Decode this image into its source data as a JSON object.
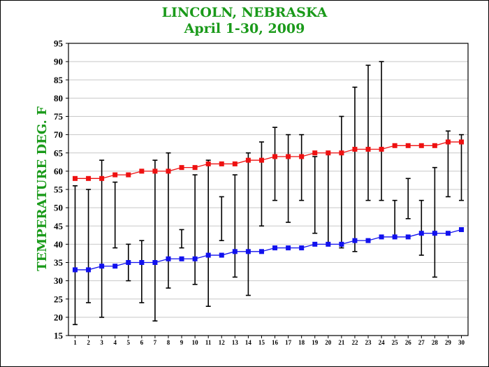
{
  "chart_data": {
    "type": "line",
    "title": "LINCOLN, NEBRASKA",
    "subtitle": "April 1-30,  2009",
    "xlabel": "",
    "ylabel": "TEMPERATURE DEG. F",
    "ylim": [
      15,
      95
    ],
    "yticks": [
      15,
      20,
      25,
      30,
      35,
      40,
      45,
      50,
      55,
      60,
      65,
      70,
      75,
      80,
      85,
      90,
      95
    ],
    "categories": [
      "1",
      "2",
      "3",
      "4",
      "5",
      "6",
      "7",
      "8",
      "9",
      "10",
      "11",
      "12",
      "13",
      "14",
      "15",
      "16",
      "17",
      "18",
      "19",
      "20",
      "21",
      "22",
      "23",
      "24",
      "25",
      "26",
      "27",
      "28",
      "29",
      "30"
    ],
    "grid": true,
    "series": [
      {
        "color": "#ee1111",
        "marker": "square",
        "values": [
          58,
          58,
          58,
          59,
          59,
          60,
          60,
          60,
          61,
          61,
          62,
          62,
          62,
          63,
          63,
          64,
          64,
          64,
          65,
          65,
          65,
          66,
          66,
          66,
          67,
          67,
          67,
          67,
          68,
          68
        ]
      },
      {
        "color": "#1111ee",
        "marker": "square",
        "values": [
          33,
          33,
          34,
          34,
          35,
          35,
          35,
          36,
          36,
          36,
          37,
          37,
          38,
          38,
          38,
          39,
          39,
          39,
          40,
          40,
          40,
          41,
          41,
          42,
          42,
          42,
          43,
          43,
          43,
          44
        ]
      }
    ],
    "error_bars": {
      "color": "#000000",
      "ranges": [
        [
          18,
          56
        ],
        [
          24,
          55
        ],
        [
          20,
          63
        ],
        [
          39,
          57
        ],
        [
          30,
          40
        ],
        [
          24,
          41
        ],
        [
          19,
          63
        ],
        [
          28,
          65
        ],
        [
          39,
          44
        ],
        [
          29,
          59
        ],
        [
          23,
          63
        ],
        [
          41,
          53
        ],
        [
          31,
          59
        ],
        [
          26,
          65
        ],
        [
          45,
          68
        ],
        [
          52,
          72
        ],
        [
          46,
          70
        ],
        [
          52,
          70
        ],
        [
          43,
          64
        ],
        [
          40,
          65
        ],
        [
          39,
          75
        ],
        [
          38,
          83
        ],
        [
          52,
          89
        ],
        [
          52,
          90
        ],
        [
          42,
          52
        ],
        [
          47,
          58
        ],
        [
          37,
          52
        ],
        [
          31,
          61
        ],
        [
          53,
          71
        ],
        [
          52,
          70
        ]
      ]
    }
  }
}
